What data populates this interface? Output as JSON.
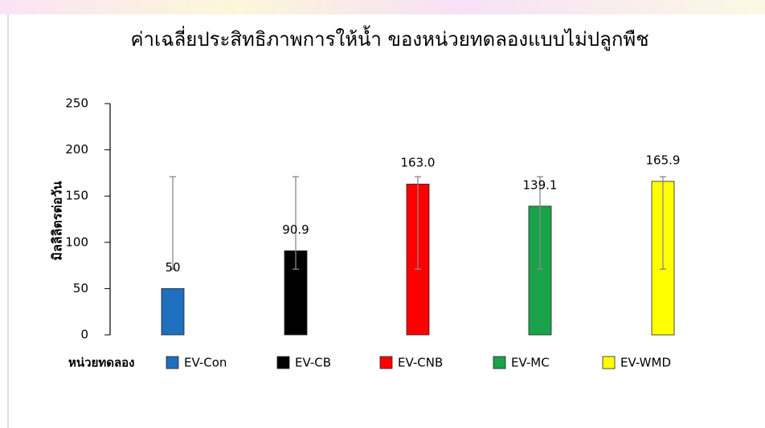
{
  "chart_data": {
    "type": "bar",
    "title": "ค่าเฉลี่ยประสิทธิภาพการให้น้ำ ของหน่วยทดลองแบบไม่ปลูกพืช",
    "y_label": "มิลลิลิตรต่อวัน",
    "legend_title": "หน่วยทดลอง",
    "categories": [
      "EV-Con",
      "EV-CB",
      "EV-CNB",
      "EV-MC",
      "EV-WMD"
    ],
    "values": [
      50,
      90.9,
      163.0,
      139.1,
      165.9
    ],
    "value_labels": [
      "50",
      "90.9",
      "163.0",
      "139.1",
      "165.9"
    ],
    "error_bars": [
      [
        71,
        171
      ],
      [
        71,
        171
      ],
      [
        71,
        171
      ],
      [
        71,
        171
      ],
      [
        71,
        171
      ]
    ],
    "colors": [
      "#1f6fbf",
      "#000000",
      "#ff0000",
      "#1aa34a",
      "#ffff00"
    ],
    "ylim": [
      0,
      250
    ],
    "yticks": [
      0,
      50,
      100,
      150,
      200,
      250
    ],
    "grid": false
  }
}
